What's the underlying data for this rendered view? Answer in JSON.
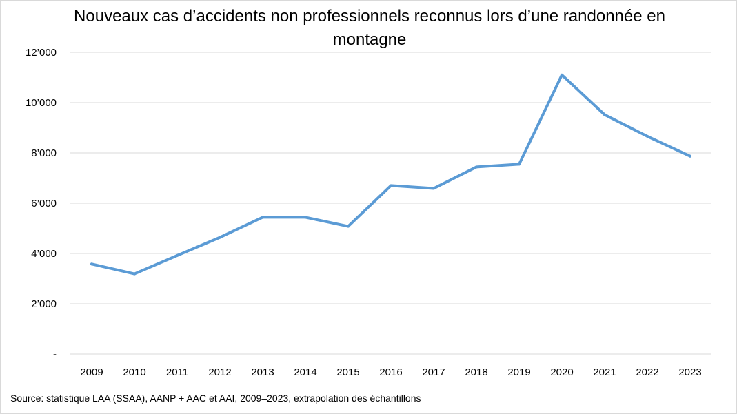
{
  "chart_data": {
    "type": "line",
    "title": "Nouveaux cas d’accidents non professionnels reconnus lors d’une randonnée en montagne",
    "xlabel": "",
    "ylabel": "",
    "categories": [
      "2009",
      "2010",
      "2011",
      "2012",
      "2013",
      "2014",
      "2015",
      "2016",
      "2017",
      "2018",
      "2019",
      "2020",
      "2021",
      "2022",
      "2023"
    ],
    "series": [
      {
        "values": [
          3580,
          3190,
          3920,
          4640,
          5440,
          5440,
          5080,
          6700,
          6590,
          7440,
          7550,
          11100,
          9520,
          8660,
          7870
        ],
        "color": "#5b9bd5"
      }
    ],
    "ylim": [
      0,
      12000
    ],
    "yticks": [
      0,
      2000,
      4000,
      6000,
      8000,
      10000,
      12000
    ],
    "ytick_labels": [
      "-",
      "2’000",
      "4’000",
      "6’000",
      "8’000",
      "10’000",
      "12’000"
    ],
    "grid": true,
    "gridline_color": "#d9d9d9",
    "legend": "none"
  },
  "source": "Source: statistique LAA (SSAA), AANP + AAC et AAI, 2009–2023, extrapolation des échantillons"
}
